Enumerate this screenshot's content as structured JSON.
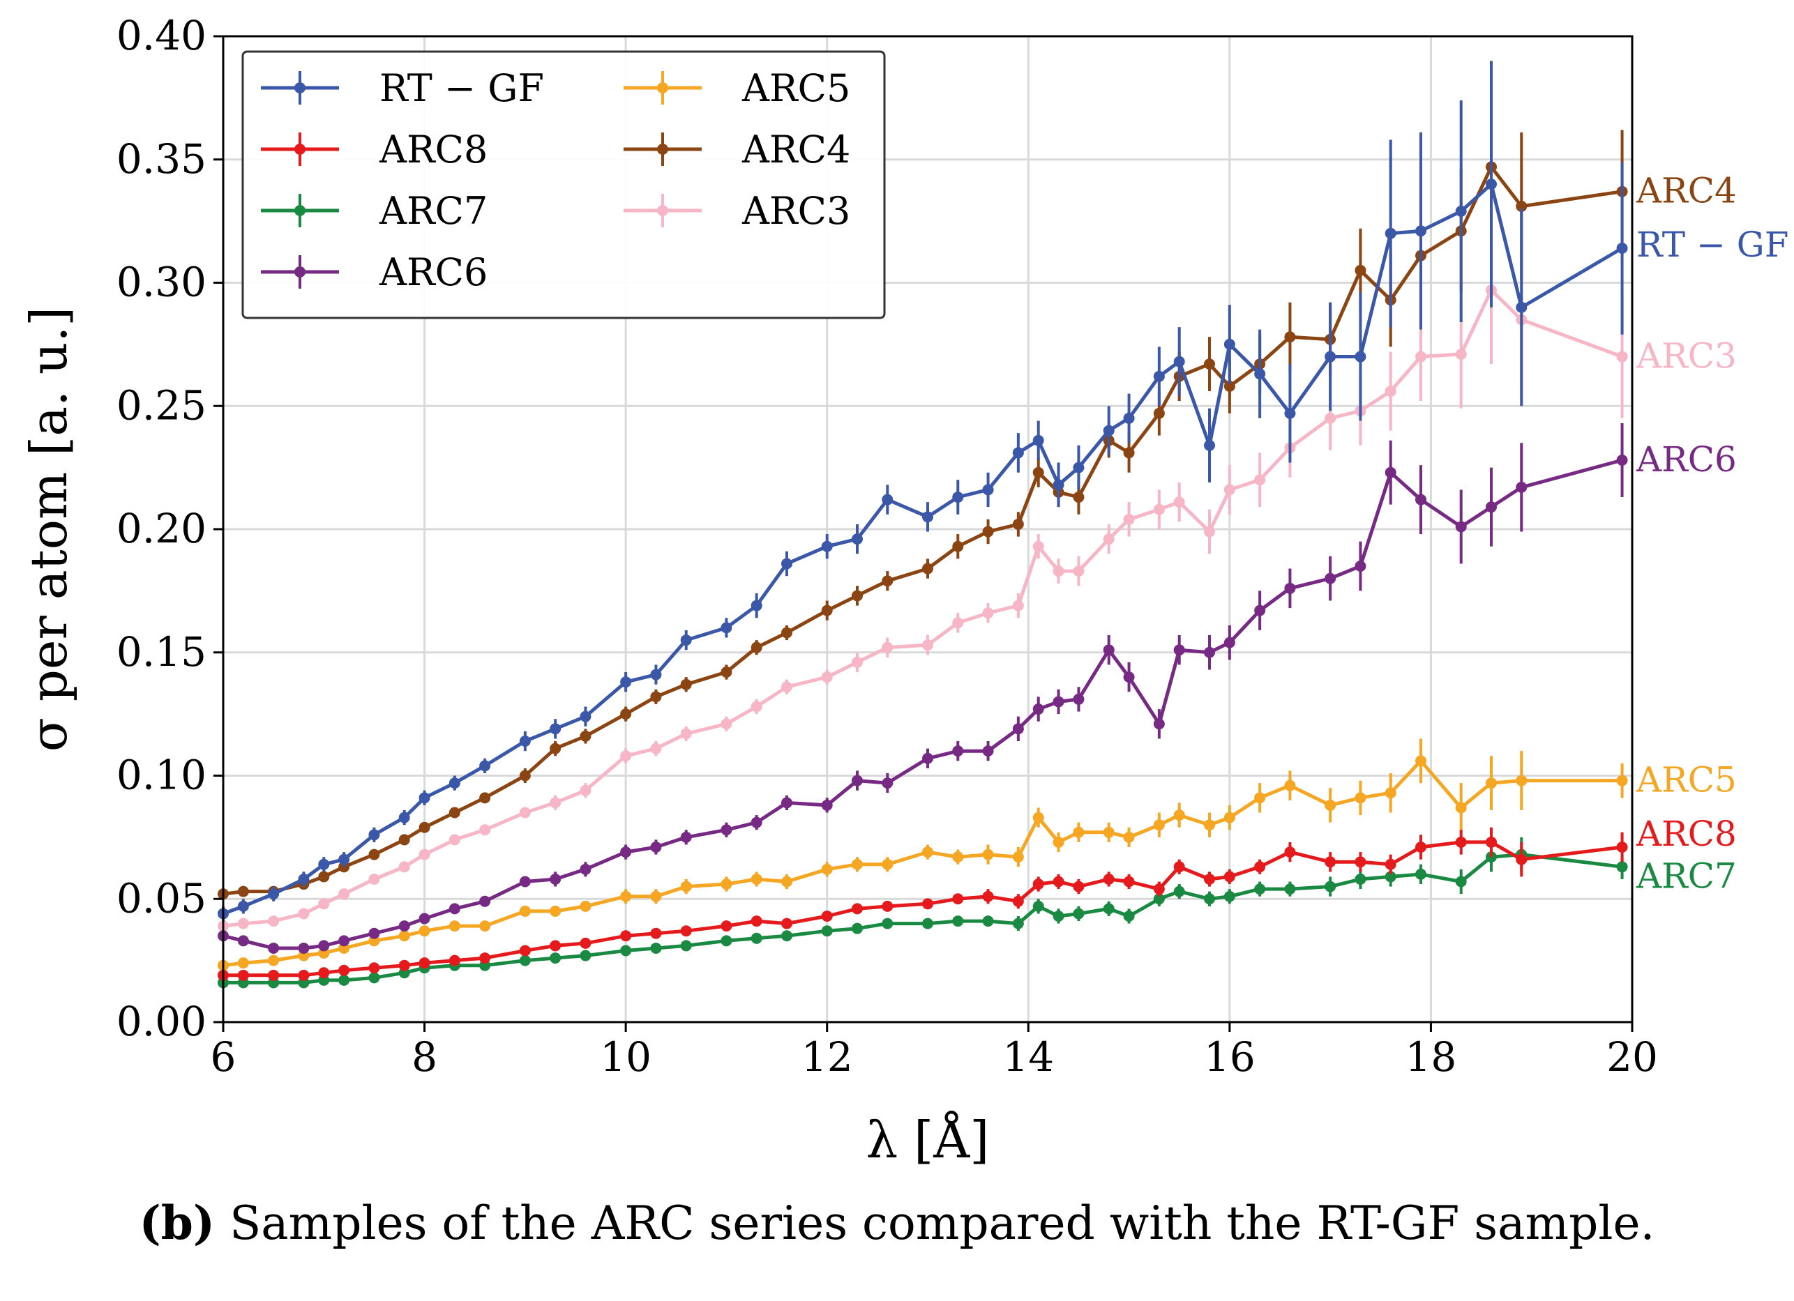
{
  "chart_data": {
    "type": "line",
    "xlabel": "λ [Å]",
    "ylabel": "σ per atom [a. u.]",
    "xlim": [
      6,
      20
    ],
    "ylim": [
      0,
      0.4
    ],
    "xticks": [
      "6",
      "8",
      "10",
      "12",
      "14",
      "16",
      "18",
      "20"
    ],
    "yticks": [
      "0.00",
      "0.05",
      "0.10",
      "0.15",
      "0.20",
      "0.25",
      "0.30",
      "0.35",
      "0.40"
    ],
    "grid": true,
    "legend_position": "top-left",
    "error_bars": true,
    "x": [
      6.0,
      6.2,
      6.5,
      6.8,
      7.0,
      7.2,
      7.5,
      7.8,
      8.0,
      8.3,
      8.6,
      9.0,
      9.3,
      9.6,
      10.0,
      10.3,
      10.6,
      11.0,
      11.3,
      11.6,
      12.0,
      12.3,
      12.6,
      13.0,
      13.3,
      13.6,
      13.9,
      14.1,
      14.3,
      14.5,
      14.8,
      15.0,
      15.3,
      15.5,
      15.8,
      16.0,
      16.3,
      16.6,
      17.0,
      17.3,
      17.6,
      17.9,
      18.3,
      18.6,
      18.9,
      19.9
    ],
    "series": [
      {
        "name": "RT − GF",
        "color": "#3b58a8",
        "end_label": "RT − GF",
        "values": [
          0.044,
          0.047,
          0.052,
          0.058,
          0.064,
          0.066,
          0.076,
          0.083,
          0.091,
          0.097,
          0.104,
          0.114,
          0.119,
          0.124,
          0.138,
          0.141,
          0.155,
          0.16,
          0.169,
          0.186,
          0.193,
          0.196,
          0.212,
          0.205,
          0.213,
          0.216,
          0.231,
          0.236,
          0.218,
          0.225,
          0.24,
          0.245,
          0.262,
          0.268,
          0.234,
          0.275,
          0.263,
          0.247,
          0.27,
          0.27,
          0.32,
          0.321,
          0.329,
          0.34,
          0.29,
          0.314
        ],
        "errors": [
          0.003,
          0.003,
          0.003,
          0.003,
          0.003,
          0.003,
          0.003,
          0.003,
          0.003,
          0.003,
          0.003,
          0.004,
          0.004,
          0.004,
          0.004,
          0.004,
          0.004,
          0.004,
          0.005,
          0.005,
          0.005,
          0.006,
          0.006,
          0.006,
          0.007,
          0.007,
          0.008,
          0.008,
          0.009,
          0.009,
          0.01,
          0.01,
          0.012,
          0.014,
          0.015,
          0.016,
          0.018,
          0.02,
          0.022,
          0.026,
          0.038,
          0.04,
          0.045,
          0.05,
          0.04,
          0.035
        ]
      },
      {
        "name": "ARC8",
        "color": "#e41a1c",
        "end_label": "ARC8",
        "values": [
          0.019,
          0.019,
          0.019,
          0.019,
          0.02,
          0.021,
          0.022,
          0.023,
          0.024,
          0.025,
          0.026,
          0.029,
          0.031,
          0.032,
          0.035,
          0.036,
          0.037,
          0.039,
          0.041,
          0.04,
          0.043,
          0.046,
          0.047,
          0.048,
          0.05,
          0.051,
          0.049,
          0.056,
          0.057,
          0.055,
          0.058,
          0.057,
          0.054,
          0.063,
          0.058,
          0.059,
          0.063,
          0.069,
          0.065,
          0.065,
          0.064,
          0.071,
          0.073,
          0.073,
          0.066,
          0.071
        ],
        "errors": [
          0.002,
          0.002,
          0.002,
          0.002,
          0.002,
          0.002,
          0.002,
          0.002,
          0.002,
          0.002,
          0.002,
          0.002,
          0.002,
          0.002,
          0.002,
          0.002,
          0.002,
          0.002,
          0.002,
          0.002,
          0.002,
          0.002,
          0.002,
          0.002,
          0.002,
          0.003,
          0.003,
          0.003,
          0.003,
          0.003,
          0.003,
          0.003,
          0.003,
          0.003,
          0.003,
          0.003,
          0.003,
          0.004,
          0.004,
          0.004,
          0.004,
          0.005,
          0.005,
          0.006,
          0.007,
          0.006
        ]
      },
      {
        "name": "ARC7",
        "color": "#1a8a43",
        "end_label": "ARC7",
        "values": [
          0.016,
          0.016,
          0.016,
          0.016,
          0.017,
          0.017,
          0.018,
          0.02,
          0.022,
          0.023,
          0.023,
          0.025,
          0.026,
          0.027,
          0.029,
          0.03,
          0.031,
          0.033,
          0.034,
          0.035,
          0.037,
          0.038,
          0.04,
          0.04,
          0.041,
          0.041,
          0.04,
          0.047,
          0.043,
          0.044,
          0.046,
          0.043,
          0.05,
          0.053,
          0.05,
          0.051,
          0.054,
          0.054,
          0.055,
          0.058,
          0.059,
          0.06,
          0.057,
          0.067,
          0.068,
          0.063
        ],
        "errors": [
          0.002,
          0.002,
          0.002,
          0.002,
          0.002,
          0.002,
          0.002,
          0.002,
          0.002,
          0.002,
          0.002,
          0.002,
          0.002,
          0.002,
          0.002,
          0.002,
          0.002,
          0.002,
          0.002,
          0.002,
          0.002,
          0.002,
          0.002,
          0.002,
          0.002,
          0.002,
          0.003,
          0.003,
          0.003,
          0.003,
          0.003,
          0.003,
          0.003,
          0.003,
          0.003,
          0.003,
          0.003,
          0.003,
          0.004,
          0.004,
          0.004,
          0.004,
          0.005,
          0.006,
          0.007,
          0.005
        ]
      },
      {
        "name": "ARC6",
        "color": "#762a83",
        "end_label": "ARC6",
        "values": [
          0.035,
          0.033,
          0.03,
          0.03,
          0.031,
          0.033,
          0.036,
          0.039,
          0.042,
          0.046,
          0.049,
          0.057,
          0.058,
          0.062,
          0.069,
          0.071,
          0.075,
          0.078,
          0.081,
          0.089,
          0.088,
          0.098,
          0.097,
          0.107,
          0.11,
          0.11,
          0.119,
          0.127,
          0.13,
          0.131,
          0.151,
          0.14,
          0.121,
          0.151,
          0.15,
          0.154,
          0.167,
          0.176,
          0.18,
          0.185,
          0.223,
          0.212,
          0.201,
          0.209,
          0.217,
          0.228
        ],
        "errors": [
          0.002,
          0.002,
          0.002,
          0.002,
          0.002,
          0.002,
          0.002,
          0.002,
          0.002,
          0.002,
          0.002,
          0.002,
          0.003,
          0.003,
          0.003,
          0.003,
          0.003,
          0.003,
          0.003,
          0.003,
          0.003,
          0.004,
          0.004,
          0.004,
          0.004,
          0.004,
          0.005,
          0.005,
          0.005,
          0.005,
          0.006,
          0.006,
          0.006,
          0.006,
          0.007,
          0.007,
          0.008,
          0.008,
          0.009,
          0.01,
          0.013,
          0.014,
          0.015,
          0.016,
          0.018,
          0.015
        ]
      },
      {
        "name": "ARC5",
        "color": "#f5a623",
        "end_label": "ARC5",
        "values": [
          0.023,
          0.024,
          0.025,
          0.027,
          0.028,
          0.03,
          0.033,
          0.035,
          0.037,
          0.039,
          0.039,
          0.045,
          0.045,
          0.047,
          0.051,
          0.051,
          0.055,
          0.056,
          0.058,
          0.057,
          0.062,
          0.064,
          0.064,
          0.069,
          0.067,
          0.068,
          0.067,
          0.083,
          0.073,
          0.077,
          0.077,
          0.075,
          0.08,
          0.084,
          0.08,
          0.083,
          0.091,
          0.096,
          0.088,
          0.091,
          0.093,
          0.106,
          0.087,
          0.097,
          0.098,
          0.098
        ],
        "errors": [
          0.002,
          0.002,
          0.002,
          0.002,
          0.002,
          0.002,
          0.002,
          0.002,
          0.002,
          0.002,
          0.002,
          0.002,
          0.002,
          0.002,
          0.003,
          0.003,
          0.003,
          0.003,
          0.003,
          0.003,
          0.003,
          0.003,
          0.003,
          0.003,
          0.003,
          0.004,
          0.004,
          0.004,
          0.004,
          0.004,
          0.004,
          0.004,
          0.005,
          0.005,
          0.005,
          0.005,
          0.006,
          0.006,
          0.007,
          0.007,
          0.008,
          0.009,
          0.01,
          0.011,
          0.012,
          0.007
        ]
      },
      {
        "name": "ARC4",
        "color": "#8b4513",
        "end_label": "ARC4",
        "values": [
          0.052,
          0.053,
          0.053,
          0.056,
          0.059,
          0.063,
          0.068,
          0.074,
          0.079,
          0.085,
          0.091,
          0.1,
          0.111,
          0.116,
          0.125,
          0.132,
          0.137,
          0.142,
          0.152,
          0.158,
          0.167,
          0.173,
          0.179,
          0.184,
          0.193,
          0.199,
          0.202,
          0.223,
          0.215,
          0.213,
          0.236,
          0.231,
          0.247,
          0.262,
          0.267,
          0.258,
          0.267,
          0.278,
          0.277,
          0.305,
          0.293,
          0.311,
          0.321,
          0.347,
          0.331,
          0.337
        ],
        "errors": [
          0.002,
          0.002,
          0.002,
          0.002,
          0.002,
          0.002,
          0.002,
          0.002,
          0.002,
          0.002,
          0.002,
          0.003,
          0.003,
          0.003,
          0.003,
          0.003,
          0.003,
          0.003,
          0.003,
          0.003,
          0.004,
          0.004,
          0.004,
          0.004,
          0.005,
          0.005,
          0.005,
          0.006,
          0.006,
          0.007,
          0.007,
          0.008,
          0.009,
          0.01,
          0.011,
          0.011,
          0.012,
          0.014,
          0.015,
          0.017,
          0.019,
          0.021,
          0.025,
          0.028,
          0.03,
          0.025
        ]
      },
      {
        "name": "ARC3",
        "color": "#f7b6c6",
        "end_label": "ARC3",
        "values": [
          0.039,
          0.04,
          0.041,
          0.044,
          0.048,
          0.052,
          0.058,
          0.063,
          0.068,
          0.074,
          0.078,
          0.085,
          0.089,
          0.094,
          0.108,
          0.111,
          0.117,
          0.121,
          0.128,
          0.136,
          0.14,
          0.146,
          0.152,
          0.153,
          0.162,
          0.166,
          0.169,
          0.193,
          0.183,
          0.183,
          0.196,
          0.204,
          0.208,
          0.211,
          0.199,
          0.216,
          0.22,
          0.233,
          0.245,
          0.248,
          0.256,
          0.27,
          0.271,
          0.297,
          0.285,
          0.27
        ],
        "errors": [
          0.002,
          0.002,
          0.002,
          0.002,
          0.002,
          0.002,
          0.002,
          0.002,
          0.002,
          0.002,
          0.002,
          0.002,
          0.003,
          0.003,
          0.003,
          0.003,
          0.003,
          0.003,
          0.003,
          0.003,
          0.003,
          0.004,
          0.004,
          0.004,
          0.004,
          0.004,
          0.005,
          0.005,
          0.005,
          0.006,
          0.006,
          0.007,
          0.008,
          0.008,
          0.009,
          0.01,
          0.011,
          0.012,
          0.013,
          0.014,
          0.016,
          0.018,
          0.022,
          0.03,
          0.03,
          0.025
        ]
      }
    ]
  },
  "caption": {
    "label": "(b)",
    "text": "Samples of the ARC series compared with the RT-GF sample."
  }
}
